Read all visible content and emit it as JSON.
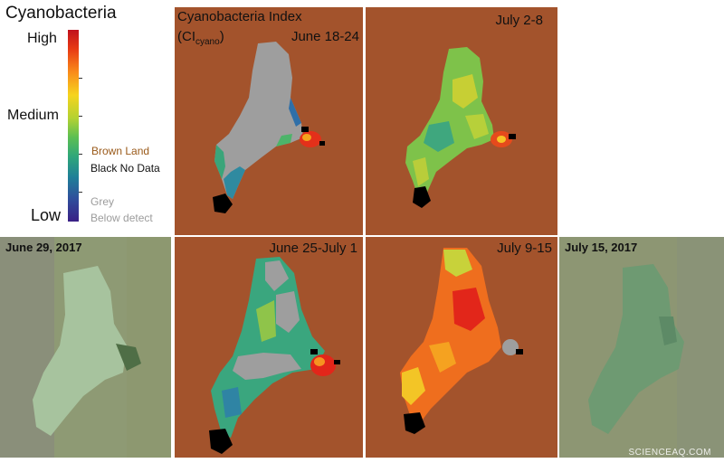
{
  "legend": {
    "title": "Cyanobacteria",
    "high": "High",
    "medium": "Medium",
    "low": "Low",
    "key_brown": "Brown  Land",
    "key_black": "Black No Data",
    "key_grey_1": "Grey",
    "key_grey_2": "Below detect",
    "colors": {
      "land": "#a3532c",
      "no_data": "#000000",
      "below_detect": "#9e9e9e",
      "high": "#c0101c",
      "low": "#3a2086"
    }
  },
  "index_title": {
    "line1": "Cyanobacteria Index",
    "line2_prefix": "(CI",
    "line2_sub": "cyano",
    "line2_suffix": ")"
  },
  "panels": [
    {
      "label": "June 18-24",
      "level": "low"
    },
    {
      "label": "July 2-8",
      "level": "medium"
    },
    {
      "label": "June 25-July 1",
      "level": "low-medium"
    },
    {
      "label": "July 9-15",
      "level": "high"
    }
  ],
  "photos": [
    {
      "label": "June 29, 2017"
    },
    {
      "label": "July 15, 2017"
    }
  ],
  "watermark": "SCIENCEAQ.COM"
}
